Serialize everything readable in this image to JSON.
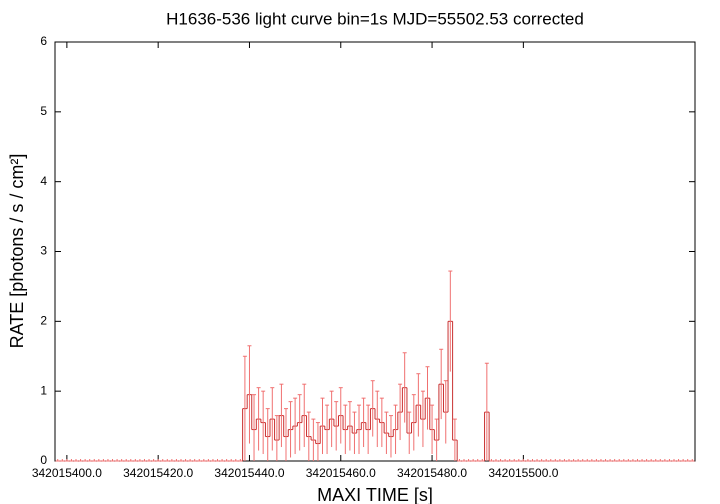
{
  "chart_data": {
    "type": "step",
    "title": "H1636-536 light curve bin=1s MJD=55502.53 corrected",
    "xlabel": "MAXI TIME [s]",
    "ylabel": "RATE [photons / s / cm²]",
    "color": "#c83030",
    "error_color": "#f07070",
    "xlim": [
      342015397.4,
      342015537.6
    ],
    "ylim": [
      0,
      6
    ],
    "xticks": [
      {
        "value": 342015400,
        "label": "342015400.0"
      },
      {
        "value": 342015420,
        "label": "342015420.0"
      },
      {
        "value": 342015440,
        "label": "342015440.0"
      },
      {
        "value": 342015460,
        "label": "342015460.0"
      },
      {
        "value": 342015480,
        "label": "342015480.0"
      },
      {
        "value": 342015500,
        "label": "342015500.0"
      }
    ],
    "yticks": [
      0,
      1,
      2,
      3,
      4,
      5,
      6
    ],
    "x": [
      342015398,
      342015399,
      342015400,
      342015401,
      342015402,
      342015403,
      342015404,
      342015405,
      342015406,
      342015407,
      342015408,
      342015409,
      342015410,
      342015411,
      342015412,
      342015413,
      342015414,
      342015415,
      342015416,
      342015417,
      342015418,
      342015419,
      342015420,
      342015421,
      342015422,
      342015423,
      342015424,
      342015425,
      342015426,
      342015427,
      342015428,
      342015429,
      342015430,
      342015431,
      342015432,
      342015433,
      342015434,
      342015435,
      342015436,
      342015437,
      342015438,
      342015439,
      342015440,
      342015441,
      342015442,
      342015443,
      342015444,
      342015445,
      342015446,
      342015447,
      342015448,
      342015449,
      342015450,
      342015451,
      342015452,
      342015453,
      342015454,
      342015455,
      342015456,
      342015457,
      342015458,
      342015459,
      342015460,
      342015461,
      342015462,
      342015463,
      342015464,
      342015465,
      342015466,
      342015467,
      342015468,
      342015469,
      342015470,
      342015471,
      342015472,
      342015473,
      342015474,
      342015475,
      342015476,
      342015477,
      342015478,
      342015479,
      342015480,
      342015481,
      342015482,
      342015483,
      342015484,
      342015485,
      342015486,
      342015487,
      342015488,
      342015489,
      342015490,
      342015491,
      342015492,
      342015493,
      342015494,
      342015495,
      342015496,
      342015497,
      342015498,
      342015499,
      342015500,
      342015501,
      342015502,
      342015503,
      342015504,
      342015505,
      342015506,
      342015507,
      342015508,
      342015509,
      342015510,
      342015511,
      342015512,
      342015513,
      342015514,
      342015515,
      342015516,
      342015517,
      342015518,
      342015519,
      342015520,
      342015521,
      342015522,
      342015523,
      342015524,
      342015525,
      342015526,
      342015527,
      342015528,
      342015529,
      342015530,
      342015531,
      342015532,
      342015533,
      342015534,
      342015535,
      342015536,
      342015537
    ],
    "values": [
      0,
      0,
      0,
      0,
      0,
      0,
      0,
      0,
      0,
      0,
      0,
      0,
      0,
      0,
      0,
      0,
      0,
      0,
      0,
      0,
      0,
      0,
      0,
      0,
      0,
      0,
      0,
      0,
      0,
      0,
      0,
      0,
      0,
      0,
      0,
      0,
      0,
      0,
      0,
      0,
      0,
      0.75,
      0.95,
      0.45,
      0.6,
      0.55,
      0.35,
      0.6,
      0.3,
      0.65,
      0.35,
      0.45,
      0.5,
      0.55,
      0.65,
      0.35,
      0.3,
      0.25,
      0.5,
      0.45,
      0.6,
      0.5,
      0.65,
      0.45,
      0.5,
      0.4,
      0.45,
      0.55,
      0.45,
      0.75,
      0.6,
      0.55,
      0.4,
      0.35,
      0.45,
      0.7,
      1.05,
      0.4,
      0.55,
      0.8,
      0.6,
      0.9,
      0.45,
      0.3,
      1.1,
      0.7,
      2.0,
      0.3,
      0,
      0,
      0,
      0,
      0,
      0,
      0.7,
      0,
      0,
      0,
      0,
      0,
      0,
      0,
      0,
      0,
      0,
      0,
      0,
      0,
      0,
      0,
      0,
      0,
      0,
      0,
      0,
      0,
      0,
      0,
      0,
      0,
      0,
      0,
      0,
      0,
      0,
      0,
      0,
      0,
      0,
      0,
      0,
      0,
      0,
      0,
      0,
      0,
      0,
      0,
      0,
      0
    ],
    "errors": [
      0,
      0,
      0,
      0,
      0,
      0,
      0,
      0,
      0,
      0,
      0,
      0,
      0,
      0,
      0,
      0,
      0,
      0,
      0,
      0,
      0,
      0,
      0,
      0,
      0,
      0,
      0,
      0,
      0,
      0,
      0,
      0,
      0,
      0,
      0,
      0,
      0,
      0,
      0,
      0,
      0,
      0.75,
      0.7,
      0.5,
      0.45,
      0.45,
      0.4,
      0.45,
      0.35,
      0.45,
      0.4,
      0.4,
      0.4,
      0.4,
      0.45,
      0.35,
      0.3,
      0.3,
      0.4,
      0.35,
      0.4,
      0.35,
      0.4,
      0.35,
      0.35,
      0.3,
      0.35,
      0.35,
      0.35,
      0.4,
      0.4,
      0.35,
      0.3,
      0.3,
      0.35,
      0.4,
      0.5,
      0.3,
      0.4,
      0.45,
      0.4,
      0.45,
      0.35,
      0.3,
      0.5,
      0.45,
      0.72,
      0.3,
      0,
      0,
      0,
      0,
      0,
      0,
      0.7,
      0,
      0,
      0,
      0,
      0,
      0,
      0,
      0,
      0,
      0,
      0,
      0,
      0,
      0,
      0,
      0,
      0,
      0,
      0,
      0,
      0,
      0,
      0,
      0,
      0,
      0,
      0,
      0,
      0,
      0,
      0,
      0,
      0,
      0,
      0,
      0,
      0,
      0,
      0,
      0,
      0,
      0,
      0,
      0,
      0
    ]
  }
}
